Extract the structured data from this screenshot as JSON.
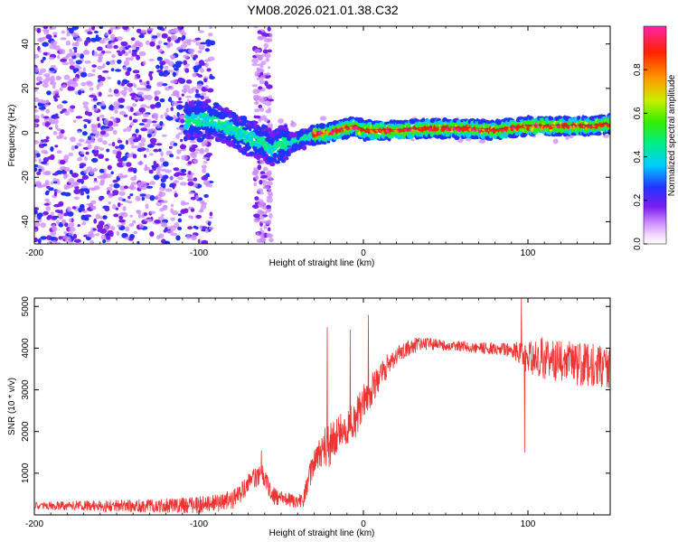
{
  "title": "YM08.2026.021.01.38.C32",
  "colors": {
    "snr_line": "#ee3333",
    "axis": "#000000",
    "bg": "#ffffff"
  },
  "chart_data": [
    {
      "type": "heatmap",
      "name": "spectrogram",
      "xlabel": "Height of straight line (km)",
      "ylabel": "Frequency (Hz)",
      "xlim": [
        -200,
        150
      ],
      "ylim": [
        -50,
        48
      ],
      "xticks": [
        -200,
        -100,
        0,
        100
      ],
      "yticks": [
        -40,
        -20,
        0,
        20,
        40
      ],
      "trend": {
        "x": [
          -200,
          -110,
          -100,
          -90,
          -80,
          -70,
          -60,
          -55,
          -50,
          -40,
          -30,
          -20,
          -10,
          -5,
          0,
          20,
          40,
          60,
          80,
          100,
          120,
          140,
          150
        ],
        "f": [
          5,
          5,
          6,
          5,
          2,
          -2,
          -5,
          -8,
          -5,
          -4,
          -1,
          0,
          2,
          3,
          1,
          1,
          2,
          2,
          1,
          3,
          3,
          3,
          4
        ]
      },
      "colorbar": {
        "label": "Normalized spectral amplitude",
        "range": [
          0,
          1
        ],
        "ticks": [
          0.0,
          0.2,
          0.4,
          0.6,
          0.8
        ]
      }
    },
    {
      "type": "line",
      "name": "snr",
      "xlabel": "Height of straight line (km)",
      "ylabel": "SNR (10 * v/v)",
      "xlim": [
        -200,
        150
      ],
      "ylim": [
        0,
        5200
      ],
      "xticks": [
        -200,
        -100,
        0,
        100
      ],
      "yticks": [
        1000,
        2000,
        3000,
        4000,
        5000
      ],
      "envelope": {
        "x": [
          -200,
          -120,
          -100,
          -90,
          -80,
          -75,
          -70,
          -65,
          -62,
          -60,
          -55,
          -45,
          -40,
          -37,
          -35,
          -30,
          -25,
          -20,
          -15,
          -10,
          -5,
          0,
          5,
          10,
          15,
          20,
          25,
          30,
          35,
          40,
          50,
          60,
          70,
          80,
          90,
          95,
          100,
          110,
          120,
          130,
          140,
          150
        ],
        "y": [
          220,
          220,
          240,
          280,
          350,
          500,
          750,
          900,
          1000,
          900,
          450,
          350,
          300,
          320,
          600,
          1300,
          1600,
          1700,
          1900,
          2100,
          2300,
          2700,
          3000,
          3300,
          3600,
          3800,
          3950,
          4050,
          4100,
          4100,
          4050,
          4050,
          4000,
          4000,
          3950,
          3900,
          3800,
          3750,
          3700,
          3600,
          3600,
          3550
        ]
      },
      "noise": {
        "x": [
          -200,
          -60,
          -40,
          -20,
          0,
          20,
          50,
          90,
          100,
          110,
          150
        ],
        "amp": [
          90,
          250,
          150,
          550,
          450,
          220,
          120,
          170,
          420,
          520,
          520
        ]
      },
      "spikes": [
        {
          "x": -62,
          "y": 1550
        },
        {
          "x": -22,
          "y": 4500
        },
        {
          "x": -8,
          "y": 4450
        },
        {
          "x": 3,
          "y": 4800
        },
        {
          "x": 96,
          "y": 5200
        },
        {
          "x": 98,
          "y": 1500
        }
      ]
    }
  ]
}
